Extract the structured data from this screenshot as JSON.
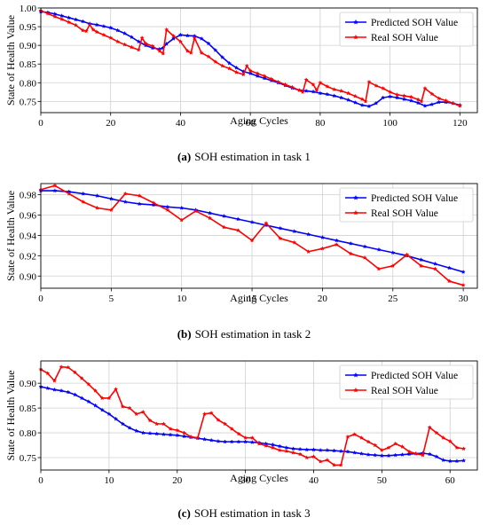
{
  "chart_data": [
    {
      "type": "line",
      "caption_tag": "(a)",
      "caption_text": "SOH estimation in task 1",
      "xlabel": "Aging Cycles",
      "ylabel": "State of Health Value",
      "xlim": [
        0,
        125
      ],
      "ylim": [
        0.72,
        1.0
      ],
      "xticks": [
        0,
        20,
        40,
        60,
        80,
        100,
        120
      ],
      "xtick_labels": [
        "0",
        "20",
        "40",
        "60",
        "80",
        "100",
        "120"
      ],
      "yticks": [
        0.75,
        0.8,
        0.85,
        0.9,
        0.95,
        1.0
      ],
      "ytick_labels": [
        "0.75",
        "0.80",
        "0.85",
        "0.90",
        "0.95",
        "1.00"
      ],
      "grid": true,
      "legend_position": "top-right",
      "series": [
        {
          "name": "Predicted SOH Value",
          "color": "#0000ff",
          "x": [
            0,
            2,
            4,
            6,
            8,
            10,
            12,
            14,
            16,
            18,
            20,
            22,
            24,
            26,
            28,
            30,
            32,
            34,
            35,
            36,
            38,
            40,
            42,
            44,
            46,
            48,
            50,
            52,
            54,
            56,
            58,
            60,
            62,
            64,
            66,
            68,
            70,
            72,
            74,
            76,
            78,
            80,
            82,
            84,
            86,
            88,
            90,
            92,
            94,
            96,
            98,
            100,
            102,
            104,
            106,
            108,
            110,
            112,
            114,
            116,
            118,
            120
          ],
          "y": [
            0.99,
            0.988,
            0.984,
            0.979,
            0.974,
            0.969,
            0.964,
            0.958,
            0.955,
            0.951,
            0.947,
            0.94,
            0.932,
            0.922,
            0.91,
            0.9,
            0.893,
            0.89,
            0.893,
            0.904,
            0.918,
            0.928,
            0.926,
            0.925,
            0.918,
            0.905,
            0.887,
            0.868,
            0.852,
            0.84,
            0.83,
            0.825,
            0.818,
            0.812,
            0.806,
            0.8,
            0.793,
            0.786,
            0.78,
            0.778,
            0.776,
            0.772,
            0.769,
            0.765,
            0.76,
            0.754,
            0.747,
            0.74,
            0.737,
            0.745,
            0.76,
            0.763,
            0.76,
            0.756,
            0.752,
            0.746,
            0.738,
            0.742,
            0.748,
            0.748,
            0.745,
            0.74
          ]
        },
        {
          "name": "Real SOH Value",
          "color": "#ff0000",
          "x": [
            0,
            2,
            4,
            6,
            8,
            10,
            12,
            13,
            14,
            15,
            16,
            18,
            20,
            22,
            24,
            26,
            28,
            29,
            30,
            32,
            34,
            35,
            36,
            38,
            40,
            42,
            43,
            44,
            46,
            48,
            50,
            52,
            54,
            56,
            58,
            59,
            60,
            62,
            64,
            66,
            68,
            70,
            72,
            74,
            75,
            76,
            78,
            79,
            80,
            82,
            84,
            86,
            88,
            90,
            92,
            93,
            94,
            96,
            98,
            100,
            102,
            104,
            106,
            108,
            109,
            110,
            112,
            114,
            116,
            118,
            120
          ],
          "y": [
            0.993,
            0.985,
            0.977,
            0.97,
            0.962,
            0.954,
            0.94,
            0.938,
            0.955,
            0.942,
            0.936,
            0.928,
            0.92,
            0.91,
            0.902,
            0.895,
            0.888,
            0.92,
            0.905,
            0.898,
            0.885,
            0.878,
            0.942,
            0.925,
            0.91,
            0.885,
            0.88,
            0.92,
            0.88,
            0.87,
            0.856,
            0.845,
            0.838,
            0.828,
            0.822,
            0.845,
            0.832,
            0.825,
            0.818,
            0.81,
            0.802,
            0.795,
            0.788,
            0.78,
            0.775,
            0.808,
            0.795,
            0.78,
            0.8,
            0.79,
            0.782,
            0.778,
            0.772,
            0.764,
            0.756,
            0.75,
            0.802,
            0.792,
            0.785,
            0.775,
            0.768,
            0.765,
            0.762,
            0.755,
            0.75,
            0.785,
            0.77,
            0.758,
            0.752,
            0.745,
            0.738
          ]
        }
      ]
    },
    {
      "type": "line",
      "caption_tag": "(b)",
      "caption_text": "SOH estimation in task 2",
      "xlabel": "Aging Cycles",
      "ylabel": "State of Health Value",
      "xlim": [
        0,
        31
      ],
      "ylim": [
        0.888,
        0.991
      ],
      "xticks": [
        0,
        5,
        10,
        15,
        20,
        25,
        30
      ],
      "xtick_labels": [
        "0",
        "5",
        "10",
        "15",
        "20",
        "25",
        "30"
      ],
      "yticks": [
        0.9,
        0.92,
        0.94,
        0.96,
        0.98
      ],
      "ytick_labels": [
        "0.90",
        "0.92",
        "0.94",
        "0.96",
        "0.98"
      ],
      "grid": true,
      "legend_position": "top-right",
      "series": [
        {
          "name": "Predicted SOH Value",
          "color": "#0000ff",
          "x": [
            0,
            1,
            2,
            3,
            4,
            5,
            6,
            7,
            8,
            9,
            10,
            11,
            12,
            13,
            14,
            15,
            16,
            17,
            18,
            19,
            20,
            21,
            22,
            23,
            24,
            25,
            26,
            27,
            28,
            29,
            30
          ],
          "y": [
            0.984,
            0.984,
            0.983,
            0.981,
            0.979,
            0.976,
            0.973,
            0.971,
            0.97,
            0.968,
            0.967,
            0.965,
            0.962,
            0.959,
            0.956,
            0.953,
            0.95,
            0.947,
            0.944,
            0.941,
            0.938,
            0.935,
            0.932,
            0.929,
            0.926,
            0.923,
            0.92,
            0.916,
            0.912,
            0.908,
            0.904
          ]
        },
        {
          "name": "Real SOH Value",
          "color": "#ff0000",
          "x": [
            0,
            1,
            2,
            3,
            4,
            5,
            6,
            7,
            8,
            9,
            10,
            11,
            12,
            13,
            14,
            15,
            16,
            17,
            18,
            19,
            20,
            21,
            22,
            23,
            24,
            25,
            26,
            27,
            28,
            29,
            30
          ],
          "y": [
            0.985,
            0.989,
            0.981,
            0.973,
            0.967,
            0.965,
            0.981,
            0.979,
            0.972,
            0.965,
            0.955,
            0.964,
            0.957,
            0.948,
            0.945,
            0.935,
            0.952,
            0.937,
            0.933,
            0.924,
            0.927,
            0.931,
            0.922,
            0.918,
            0.907,
            0.91,
            0.921,
            0.91,
            0.907,
            0.895,
            0.891
          ]
        }
      ]
    },
    {
      "type": "line",
      "caption_tag": "(c)",
      "caption_text": "SOH estimation in task 3",
      "xlabel": "Aging Cycles",
      "ylabel": "State of Health Value",
      "xlim": [
        0,
        64
      ],
      "ylim": [
        0.725,
        0.945
      ],
      "xticks": [
        0,
        10,
        20,
        30,
        40,
        50,
        60
      ],
      "xtick_labels": [
        "0",
        "10",
        "20",
        "30",
        "40",
        "50",
        "60"
      ],
      "yticks": [
        0.75,
        0.8,
        0.85,
        0.9
      ],
      "ytick_labels": [
        "0.75",
        "0.80",
        "0.85",
        "0.90"
      ],
      "grid": true,
      "legend_position": "top-right",
      "series": [
        {
          "name": "Predicted SOH Value",
          "color": "#0000ff",
          "x": [
            0,
            1,
            2,
            3,
            4,
            5,
            6,
            7,
            8,
            9,
            10,
            11,
            12,
            13,
            14,
            15,
            16,
            17,
            18,
            19,
            20,
            21,
            22,
            23,
            24,
            25,
            26,
            27,
            28,
            29,
            30,
            31,
            32,
            33,
            34,
            35,
            36,
            37,
            38,
            39,
            40,
            41,
            42,
            43,
            44,
            45,
            46,
            47,
            48,
            49,
            50,
            51,
            52,
            53,
            54,
            55,
            56,
            57,
            58,
            59,
            60,
            61,
            62
          ],
          "y": [
            0.893,
            0.89,
            0.887,
            0.885,
            0.882,
            0.877,
            0.87,
            0.863,
            0.855,
            0.846,
            0.838,
            0.828,
            0.818,
            0.81,
            0.804,
            0.8,
            0.799,
            0.798,
            0.797,
            0.796,
            0.795,
            0.793,
            0.791,
            0.789,
            0.787,
            0.785,
            0.783,
            0.782,
            0.782,
            0.782,
            0.782,
            0.781,
            0.78,
            0.778,
            0.776,
            0.773,
            0.77,
            0.768,
            0.767,
            0.766,
            0.766,
            0.765,
            0.765,
            0.764,
            0.763,
            0.762,
            0.76,
            0.758,
            0.756,
            0.755,
            0.754,
            0.754,
            0.755,
            0.756,
            0.757,
            0.758,
            0.759,
            0.757,
            0.752,
            0.745,
            0.743,
            0.743,
            0.744
          ]
        },
        {
          "name": "Real SOH Value",
          "color": "#ff0000",
          "x": [
            0,
            1,
            2,
            3,
            4,
            5,
            6,
            7,
            8,
            9,
            10,
            11,
            12,
            13,
            14,
            15,
            16,
            17,
            18,
            19,
            20,
            21,
            22,
            23,
            24,
            25,
            26,
            27,
            28,
            29,
            30,
            31,
            32,
            33,
            34,
            35,
            36,
            37,
            38,
            39,
            40,
            41,
            42,
            43,
            44,
            45,
            46,
            47,
            48,
            49,
            50,
            51,
            52,
            53,
            54,
            55,
            56,
            57,
            58,
            59,
            60,
            61,
            62
          ],
          "y": [
            0.928,
            0.92,
            0.905,
            0.933,
            0.932,
            0.922,
            0.91,
            0.898,
            0.885,
            0.87,
            0.87,
            0.888,
            0.853,
            0.85,
            0.838,
            0.842,
            0.825,
            0.818,
            0.818,
            0.808,
            0.805,
            0.8,
            0.792,
            0.79,
            0.838,
            0.84,
            0.826,
            0.818,
            0.808,
            0.798,
            0.79,
            0.79,
            0.778,
            0.774,
            0.77,
            0.765,
            0.763,
            0.76,
            0.757,
            0.75,
            0.752,
            0.742,
            0.745,
            0.735,
            0.735,
            0.792,
            0.797,
            0.79,
            0.782,
            0.775,
            0.765,
            0.77,
            0.778,
            0.772,
            0.762,
            0.758,
            0.755,
            0.811,
            0.8,
            0.79,
            0.783,
            0.77,
            0.768
          ]
        }
      ]
    }
  ]
}
